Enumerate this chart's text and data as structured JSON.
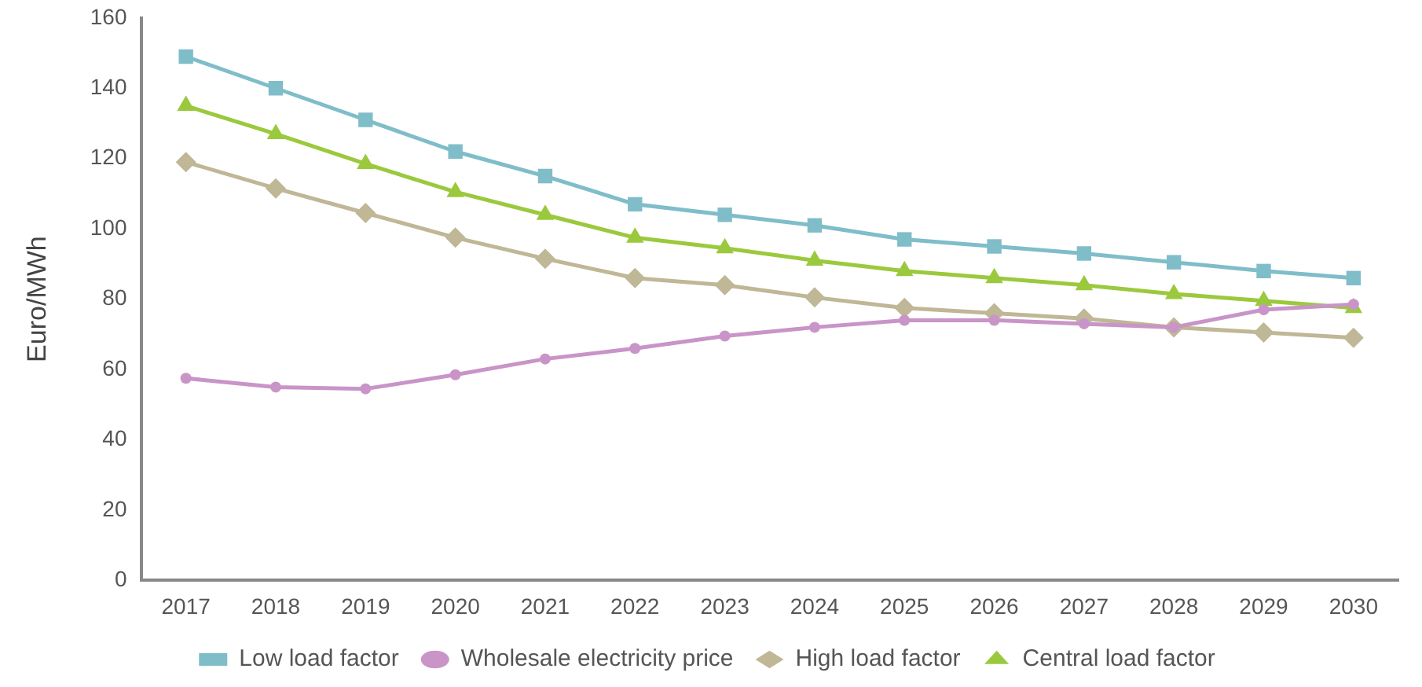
{
  "chart_data": {
    "type": "line",
    "ylabel": "Euro/MWh",
    "categories": [
      "2017",
      "2018",
      "2019",
      "2020",
      "2021",
      "2022",
      "2023",
      "2024",
      "2025",
      "2026",
      "2027",
      "2028",
      "2029",
      "2030"
    ],
    "ylim": [
      0,
      160
    ],
    "yticks": [
      0,
      20,
      40,
      60,
      80,
      100,
      120,
      140,
      160
    ],
    "grid": false,
    "legend": "bottom",
    "series": [
      {
        "name": "Low load factor",
        "color": "#7fbdc9",
        "marker": "square",
        "values": [
          149,
          140,
          131,
          122,
          115,
          107,
          104,
          101,
          97,
          95,
          93,
          90.5,
          88,
          86
        ]
      },
      {
        "name": "Wholesale electricity price",
        "color": "#c994c7",
        "marker": "circle",
        "values": [
          57.5,
          55,
          54.5,
          58.5,
          63,
          66,
          69.5,
          72,
          74,
          74,
          73,
          72,
          77,
          78.5
        ]
      },
      {
        "name": "High load factor",
        "color": "#bfb795",
        "marker": "diamond",
        "values": [
          119,
          111.5,
          104.5,
          97.5,
          91.5,
          86,
          84,
          80.5,
          77.5,
          76,
          74.5,
          72,
          70.5,
          69
        ]
      },
      {
        "name": "Central load factor",
        "color": "#9bc93d",
        "marker": "triangle",
        "values": [
          135,
          127,
          118.5,
          110.5,
          104,
          97.5,
          94.5,
          91,
          88,
          86,
          84,
          81.5,
          79.5,
          77.5
        ]
      }
    ]
  }
}
